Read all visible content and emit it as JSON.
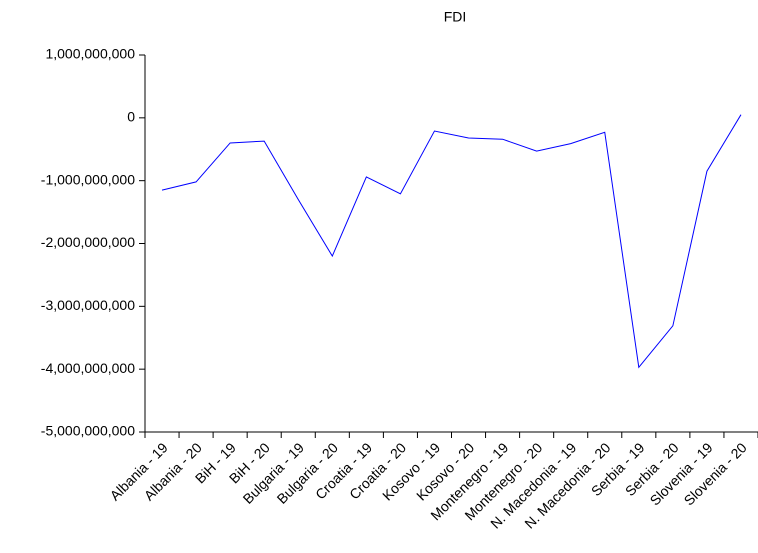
{
  "chart_data": {
    "type": "line",
    "title": "FDI",
    "categories": [
      "Albania - 19",
      "Albania - 20",
      "BiH - 19",
      "BiH - 20",
      "Bulgaria - 19",
      "Bulgaria - 20",
      "Croatia - 19",
      "Croatia - 20",
      "Kosovo - 19",
      "Kosovo - 20",
      "Montenegro - 19",
      "Montenegro - 20",
      "N. Macedonia - 19",
      "N. Macedonia - 20",
      "Serbia - 19",
      "Serbia - 20",
      "Slovenia - 19",
      "Slovenia - 20"
    ],
    "series": [
      {
        "name": "FDI",
        "color": "#0000ff",
        "values": [
          -1150000000,
          -1020000000,
          -400000000,
          -370000000,
          -1300000000,
          -2200000000,
          -940000000,
          -1210000000,
          -210000000,
          -320000000,
          -340000000,
          -530000000,
          -410000000,
          -230000000,
          -3970000000,
          -3310000000,
          -850000000,
          50000000
        ]
      }
    ],
    "ylim": [
      -5000000000,
      1000000000
    ],
    "yticks": [
      {
        "value": -5000000000,
        "label": "-5,000,000,000"
      },
      {
        "value": -4000000000,
        "label": "-4,000,000,000"
      },
      {
        "value": -3000000000,
        "label": "-3,000,000,000"
      },
      {
        "value": -2000000000,
        "label": "-2,000,000,000"
      },
      {
        "value": -1000000000,
        "label": "-1,000,000,000"
      },
      0,
      {
        "value": 1000000000,
        "label": "1,000,000,000"
      }
    ],
    "grid": false
  }
}
